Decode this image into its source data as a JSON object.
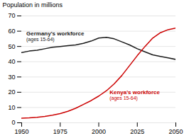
{
  "chart_data": {
    "type": "line",
    "ylabel": "Population in millions",
    "x": [
      1950,
      1955,
      1960,
      1965,
      1970,
      1975,
      1980,
      1985,
      1990,
      1995,
      2000,
      2005,
      2010,
      2015,
      2020,
      2025,
      2030,
      2035,
      2040,
      2045,
      2050
    ],
    "series": [
      {
        "color": "#1a1a1a",
        "values": [
          46.0,
          47.0,
          47.5,
          48.5,
          49.5,
          50.0,
          50.5,
          51.0,
          52.0,
          53.5,
          55.5,
          56.0,
          55.0,
          53.0,
          51.0,
          48.5,
          46.5,
          44.5,
          43.5,
          42.5,
          41.5
        ]
      },
      {
        "color": "#cc0000",
        "values": [
          3.0,
          3.2,
          3.6,
          4.2,
          5.0,
          6.0,
          7.5,
          9.5,
          12.0,
          14.5,
          17.5,
          21.0,
          25.5,
          31.0,
          37.5,
          44.0,
          50.0,
          55.5,
          59.0,
          61.0,
          62.0
        ]
      }
    ],
    "xlim": [
      1950,
      2050
    ],
    "ylim": [
      0,
      70
    ],
    "xticks": [
      1950,
      1975,
      2000,
      2025,
      2050
    ],
    "yticks": [
      0,
      10,
      20,
      30,
      40,
      50,
      60,
      70
    ],
    "grid": true,
    "annotations": [
      {
        "text": "Germany's workforce",
        "note": "(ages 15-64)",
        "x": 1953,
        "y": 58.5,
        "color": "#1a1a1a"
      },
      {
        "text": "Kenya's workforce",
        "note": "(ages 15-64)",
        "x": 2007,
        "y": 20.0,
        "color": "#cc0000"
      }
    ]
  }
}
